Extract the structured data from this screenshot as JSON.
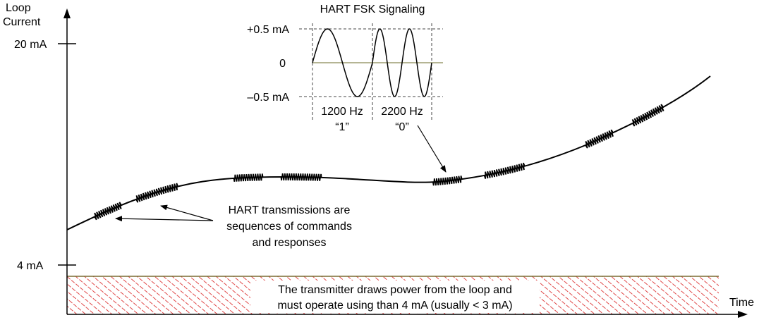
{
  "axes": {
    "y_label_line1": "Loop",
    "y_label_line2": "Current",
    "x_label": "Time",
    "tick_20ma": "20 mA",
    "tick_4ma": "4 mA"
  },
  "fsk_inset": {
    "title": "HART FSK Signaling",
    "pos_label": "+0.5 mA",
    "zero_label": "0",
    "neg_label": "–0.5 mA",
    "freq1": "1200 Hz",
    "bit1": "“1”",
    "freq2": "2200 Hz",
    "bit2": "“0”"
  },
  "annotation": {
    "line1": "HART transmissions are",
    "line2": "sequences of commands",
    "line3": "and responses"
  },
  "power_box": {
    "line1": "The transmitter draws power from the loop and",
    "line2": "must operate using than 4 mA (usually < 3 mA)"
  },
  "colors": {
    "hatch": "#e04848",
    "box_top_line": "#7a6a30",
    "curve": "#000000",
    "inset_zero_line": "#6b6b2a"
  }
}
